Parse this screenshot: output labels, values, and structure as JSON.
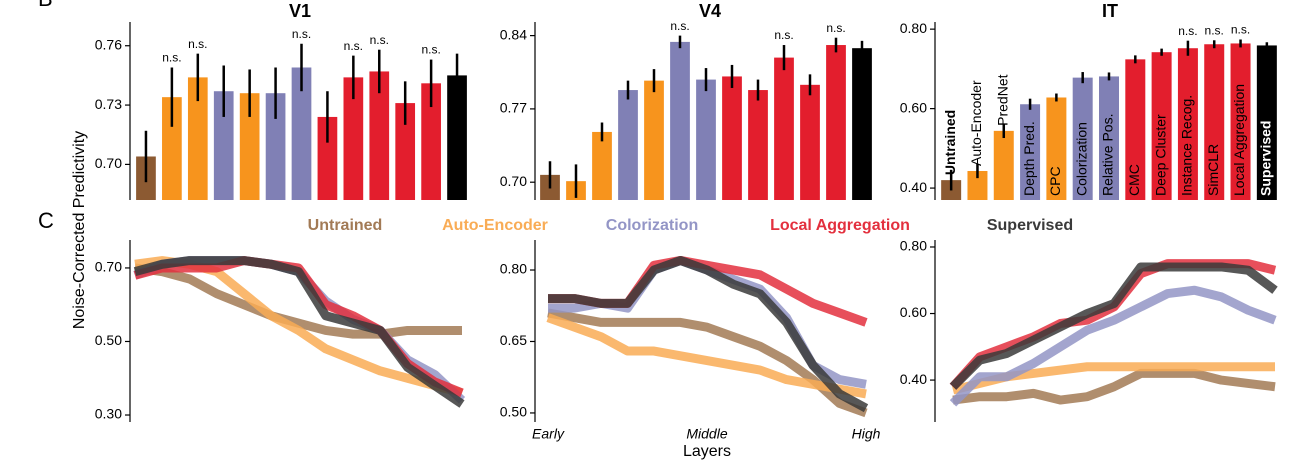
{
  "ylabel": "Noise-Corrected Predictivity",
  "panel_labels": [
    "B",
    "C"
  ],
  "chart_data": [
    {
      "type": "bar",
      "title": "V1",
      "categories": [
        null,
        null,
        null,
        null,
        null,
        null,
        null,
        null,
        null,
        null,
        null,
        null,
        null
      ],
      "values": [
        0.704,
        0.734,
        0.744,
        0.737,
        0.736,
        0.736,
        0.749,
        0.724,
        0.744,
        0.747,
        0.731,
        0.741,
        0.745
      ],
      "errors": [
        0.013,
        0.015,
        0.012,
        0.013,
        0.012,
        0.013,
        0.012,
        0.013,
        0.011,
        0.011,
        0.011,
        0.012,
        0.011
      ],
      "annotations": [
        null,
        "n.s.",
        "n.s.",
        null,
        null,
        null,
        "n.s.",
        null,
        "n.s.",
        "n.s.",
        null,
        "n.s.",
        null
      ],
      "colors": [
        "#8c5a32",
        "#f7941d",
        "#f7941d",
        "#8080b5",
        "#f7941d",
        "#8080b5",
        "#8080b5",
        "#e31e2d",
        "#e31e2d",
        "#e31e2d",
        "#e31e2d",
        "#e31e2d",
        "#000000"
      ],
      "ylim": [
        0.682,
        0.772
      ],
      "yticks": [
        {
          "value": 0.7,
          "label": "0.70"
        },
        0.73,
        0.76
      ]
    },
    {
      "type": "bar",
      "title": "V4",
      "categories": [
        null,
        null,
        null,
        null,
        null,
        null,
        null,
        null,
        null,
        null,
        null,
        null,
        null
      ],
      "values": [
        0.707,
        0.701,
        0.748,
        0.788,
        0.797,
        0.834,
        0.798,
        0.801,
        0.788,
        0.819,
        0.793,
        0.831,
        0.828
      ],
      "errors": [
        0.013,
        0.016,
        0.009,
        0.009,
        0.011,
        0.006,
        0.011,
        0.011,
        0.01,
        0.012,
        0.01,
        0.007,
        0.007
      ],
      "annotations": [
        null,
        null,
        null,
        null,
        null,
        "n.s.",
        null,
        null,
        null,
        "n.s.",
        null,
        "n.s.",
        null
      ],
      "colors": [
        "#8c5a32",
        "#f7941d",
        "#f7941d",
        "#8080b5",
        "#f7941d",
        "#8080b5",
        "#8080b5",
        "#e31e2d",
        "#e31e2d",
        "#e31e2d",
        "#e31e2d",
        "#e31e2d",
        "#000000"
      ],
      "ylim": [
        0.683,
        0.853
      ],
      "yticks": [
        {
          "value": 0.7,
          "label": "0.70"
        },
        0.77,
        0.84
      ]
    },
    {
      "type": "bar",
      "title": "IT",
      "categories": [
        "Untrained",
        "Auto-Encoder",
        "PredNet",
        "Depth Pred.",
        "CPC",
        "Colorization",
        "Relative Pos.",
        "CMC",
        "Deep Cluster",
        "Instance Recog.",
        "SimCLR",
        "Local Aggregation",
        "Supervised"
      ],
      "values": [
        0.42,
        0.443,
        0.544,
        0.611,
        0.628,
        0.678,
        0.681,
        0.724,
        0.742,
        0.752,
        0.762,
        0.764,
        0.759
      ],
      "errors": [
        0.026,
        0.018,
        0.018,
        0.014,
        0.01,
        0.014,
        0.01,
        0.01,
        0.009,
        0.019,
        0.01,
        0.01,
        0.008
      ],
      "annotations": [
        null,
        null,
        null,
        null,
        null,
        null,
        null,
        null,
        null,
        "n.s.",
        "n.s.",
        "n.s.",
        null
      ],
      "colors": [
        "#8c5a32",
        "#f7941d",
        "#f7941d",
        "#8080b5",
        "#f7941d",
        "#8080b5",
        "#8080b5",
        "#e31e2d",
        "#e31e2d",
        "#e31e2d",
        "#e31e2d",
        "#e31e2d",
        "#000000"
      ],
      "ylim": [
        0.37,
        0.818
      ],
      "yticks": [
        {
          "value": 0.4,
          "label": "0.40"
        },
        {
          "value": 0.6,
          "label": "0.60"
        },
        {
          "value": 0.8,
          "label": "0.80"
        }
      ]
    },
    {
      "type": "line",
      "categories": [
        null,
        null,
        null,
        null,
        null,
        null,
        null,
        null,
        null,
        null,
        null,
        null,
        null
      ],
      "series": [
        {
          "name": "Untrained",
          "color": "#a27a55",
          "values": [
            0.7,
            0.69,
            0.67,
            0.63,
            0.6,
            0.57,
            0.55,
            0.53,
            0.52,
            0.52,
            0.53,
            0.53,
            0.53
          ]
        },
        {
          "name": "Auto-Encoder",
          "color": "#f9ac55",
          "values": [
            0.71,
            0.72,
            0.71,
            0.69,
            0.63,
            0.57,
            0.53,
            0.48,
            0.45,
            0.42,
            0.4,
            0.38,
            0.36
          ]
        },
        {
          "name": "Colorization",
          "color": "#9395c6",
          "values": [
            0.68,
            0.71,
            0.72,
            0.72,
            0.72,
            0.71,
            0.69,
            0.61,
            0.56,
            0.53,
            0.45,
            0.41,
            0.34
          ]
        },
        {
          "name": "Local Aggregation",
          "color": "#e3303e",
          "values": [
            0.68,
            0.7,
            0.7,
            0.7,
            0.72,
            0.71,
            0.7,
            0.6,
            0.57,
            0.53,
            0.44,
            0.39,
            0.36
          ]
        },
        {
          "name": "Supervised",
          "color": "#3a3a3a",
          "values": [
            0.69,
            0.71,
            0.72,
            0.72,
            0.72,
            0.71,
            0.69,
            0.57,
            0.55,
            0.53,
            0.43,
            0.38,
            0.33
          ]
        }
      ],
      "ylim": [
        0.281,
        0.776
      ],
      "yticks": [
        {
          "value": 0.3,
          "label": "0.30"
        },
        {
          "value": 0.5,
          "label": "0.50"
        },
        {
          "value": 0.7,
          "label": "0.70"
        }
      ]
    },
    {
      "type": "line",
      "xlabel": "Layers",
      "categories": [
        "Early",
        null,
        null,
        null,
        null,
        null,
        "Middle",
        null,
        null,
        null,
        null,
        null,
        "High"
      ],
      "series": [
        {
          "color": "#a27a55",
          "values": [
            0.71,
            0.7,
            0.69,
            0.69,
            0.69,
            0.69,
            0.68,
            0.66,
            0.64,
            0.61,
            0.57,
            0.52,
            0.5
          ]
        },
        {
          "color": "#f9ac55",
          "values": [
            0.7,
            0.68,
            0.66,
            0.63,
            0.63,
            0.62,
            0.61,
            0.6,
            0.59,
            0.57,
            0.56,
            0.55,
            0.54
          ]
        },
        {
          "color": "#9395c6",
          "values": [
            0.72,
            0.72,
            0.73,
            0.72,
            0.8,
            0.82,
            0.8,
            0.78,
            0.76,
            0.7,
            0.6,
            0.57,
            0.56
          ]
        },
        {
          "color": "#e3303e",
          "values": [
            0.74,
            0.74,
            0.73,
            0.73,
            0.81,
            0.82,
            0.81,
            0.8,
            0.79,
            0.76,
            0.73,
            0.71,
            0.69
          ]
        },
        {
          "color": "#3a3a3a",
          "values": [
            0.74,
            0.74,
            0.73,
            0.73,
            0.8,
            0.82,
            0.8,
            0.77,
            0.75,
            0.69,
            0.6,
            0.54,
            0.51
          ]
        }
      ],
      "ylim": [
        0.481,
        0.863
      ],
      "yticks": [
        {
          "value": 0.5,
          "label": "0.50"
        },
        0.65,
        {
          "value": 0.8,
          "label": "0.80"
        }
      ]
    },
    {
      "type": "line",
      "categories": [
        null,
        null,
        null,
        null,
        null,
        null,
        null,
        null,
        null,
        null,
        null,
        null,
        null
      ],
      "series": [
        {
          "color": "#a27a55",
          "values": [
            0.34,
            0.35,
            0.35,
            0.36,
            0.34,
            0.35,
            0.38,
            0.42,
            0.42,
            0.42,
            0.4,
            0.39,
            0.38
          ]
        },
        {
          "color": "#f9ac55",
          "values": [
            0.37,
            0.39,
            0.41,
            0.42,
            0.43,
            0.44,
            0.44,
            0.44,
            0.44,
            0.44,
            0.44,
            0.44,
            0.44
          ]
        },
        {
          "color": "#9395c6",
          "values": [
            0.33,
            0.41,
            0.41,
            0.45,
            0.5,
            0.55,
            0.58,
            0.62,
            0.66,
            0.67,
            0.65,
            0.61,
            0.58
          ]
        },
        {
          "color": "#e3303e",
          "values": [
            0.38,
            0.47,
            0.5,
            0.53,
            0.57,
            0.58,
            0.62,
            0.72,
            0.75,
            0.75,
            0.75,
            0.75,
            0.73
          ]
        },
        {
          "color": "#3a3a3a",
          "values": [
            0.38,
            0.46,
            0.48,
            0.52,
            0.56,
            0.6,
            0.63,
            0.74,
            0.74,
            0.74,
            0.74,
            0.73,
            0.67
          ]
        }
      ],
      "ylim": [
        0.274,
        0.821
      ],
      "yticks": [
        {
          "value": 0.4,
          "label": "0.40"
        },
        {
          "value": 0.6,
          "label": "0.60"
        },
        {
          "value": 0.8,
          "label": "0.80"
        }
      ]
    }
  ]
}
